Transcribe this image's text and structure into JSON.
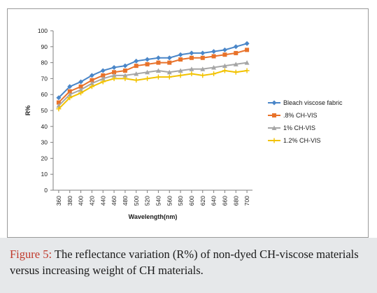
{
  "chart_data": {
    "type": "line",
    "title": "",
    "xlabel": "Wavelength(nm)",
    "ylabel": "R%",
    "ylim": [
      0,
      100
    ],
    "yticks": [
      0,
      10,
      20,
      30,
      40,
      50,
      60,
      70,
      80,
      90,
      100
    ],
    "x": [
      360,
      380,
      400,
      420,
      440,
      460,
      480,
      500,
      520,
      540,
      560,
      580,
      600,
      620,
      640,
      660,
      680,
      700
    ],
    "grid": false,
    "legend_position": "right",
    "series": [
      {
        "name": "Bleach viscose fabric",
        "color": "#4a86c8",
        "marker": "diamond",
        "values": [
          58,
          65,
          68,
          72,
          75,
          77,
          78,
          81,
          82,
          83,
          83,
          85,
          86,
          86,
          87,
          88,
          90,
          92
        ]
      },
      {
        "name": ".8% CH-VIS",
        "color": "#e8722a",
        "marker": "square",
        "values": [
          55,
          62,
          65,
          69,
          72,
          74,
          75,
          78,
          79,
          80,
          80,
          82,
          83,
          83,
          84,
          85,
          86,
          88
        ]
      },
      {
        "name": "1% CH-VIS",
        "color": "#a6a6a6",
        "marker": "triangle",
        "values": [
          53,
          60,
          63,
          67,
          70,
          72,
          72,
          73,
          74,
          75,
          74,
          75,
          76,
          76,
          77,
          78,
          79,
          80
        ]
      },
      {
        "name": "1.2% CH-VIS",
        "color": "#f2c200",
        "marker": "star",
        "values": [
          51,
          58,
          61,
          65,
          68,
          70,
          70,
          69,
          70,
          71,
          71,
          72,
          73,
          72,
          73,
          75,
          74,
          75
        ]
      }
    ]
  },
  "caption": {
    "label": "Figure 5:",
    "text": " The reflectance variation (R%) of non-dyed CH-viscose materials versus increasing weight of CH materials."
  }
}
